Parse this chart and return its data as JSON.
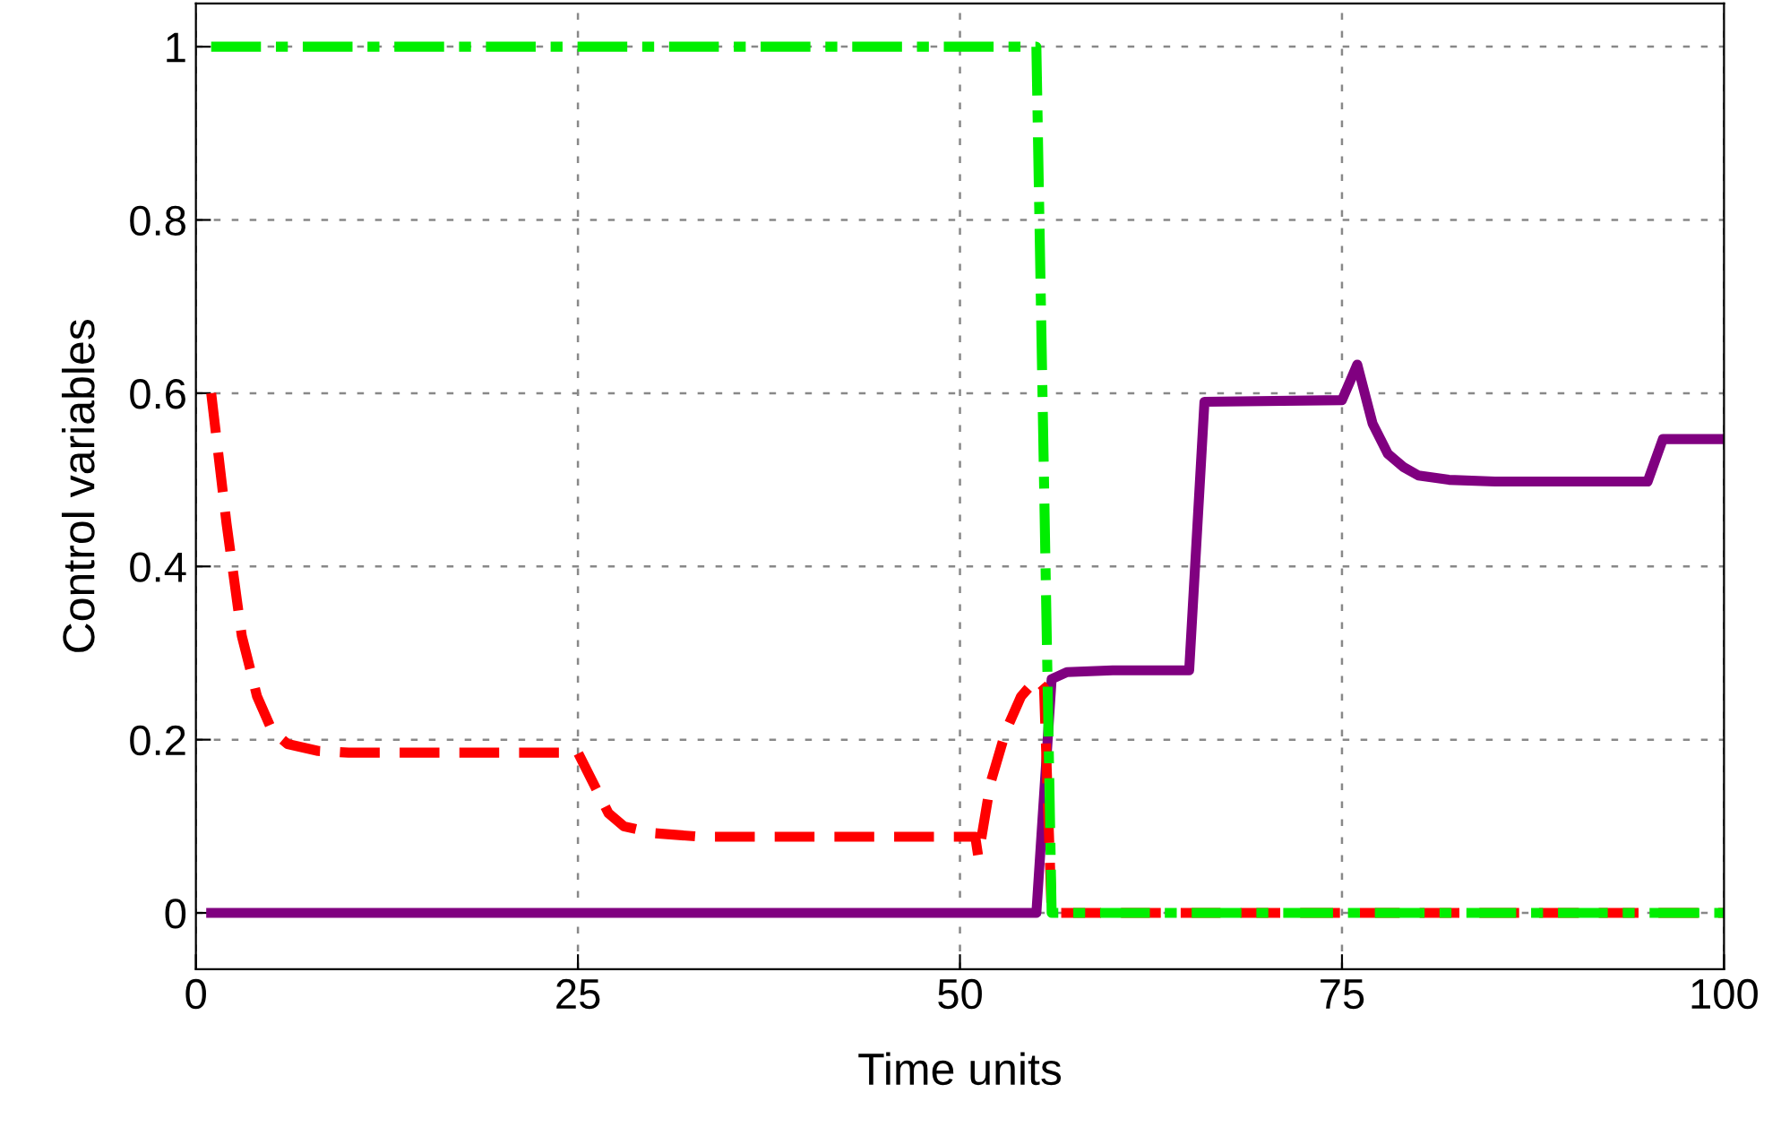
{
  "chart_data": {
    "type": "line",
    "xlabel": "Time units",
    "ylabel": "Control variables",
    "xlim": [
      0,
      100
    ],
    "ylim": [
      -0.065,
      1.05
    ],
    "xticks": [
      0,
      25,
      50,
      75,
      100
    ],
    "yticks": [
      0,
      {
        "value": 0.2,
        "label": "0.2"
      },
      {
        "value": 0.4,
        "label": "0.4"
      },
      {
        "value": 0.6,
        "label": "0.6"
      },
      {
        "value": 0.8,
        "label": "0.8"
      },
      1
    ],
    "grid": true,
    "legend": false,
    "series": [
      {
        "color": "#800080",
        "line_style": "solid",
        "x": [
          1,
          55,
          56,
          57,
          60,
          65,
          66,
          75,
          76,
          77,
          78,
          79,
          80,
          82,
          85,
          95,
          96,
          100
        ],
        "values": [
          0,
          0,
          0.27,
          0.278,
          0.28,
          0.28,
          0.59,
          0.592,
          0.633,
          0.565,
          0.53,
          0.515,
          0.505,
          0.5,
          0.498,
          0.498,
          0.547,
          0.547
        ]
      },
      {
        "color": "#ff0000",
        "line_style": "dashed",
        "x": [
          1,
          2,
          3,
          4,
          5,
          6,
          8,
          10,
          25,
          26,
          27,
          28,
          30,
          33,
          51,
          51.2,
          52,
          53,
          54,
          55,
          55.5,
          56,
          100
        ],
        "values": [
          0.6,
          0.45,
          0.32,
          0.25,
          0.21,
          0.195,
          0.187,
          0.185,
          0.185,
          0.15,
          0.115,
          0.1,
          0.092,
          0.088,
          0.088,
          0.065,
          0.15,
          0.21,
          0.25,
          0.27,
          0.26,
          0,
          0
        ]
      },
      {
        "color": "#00ee00",
        "line_style": "dashdot",
        "x": [
          1,
          55,
          56,
          100
        ],
        "values": [
          1,
          1,
          0,
          0
        ]
      }
    ]
  }
}
